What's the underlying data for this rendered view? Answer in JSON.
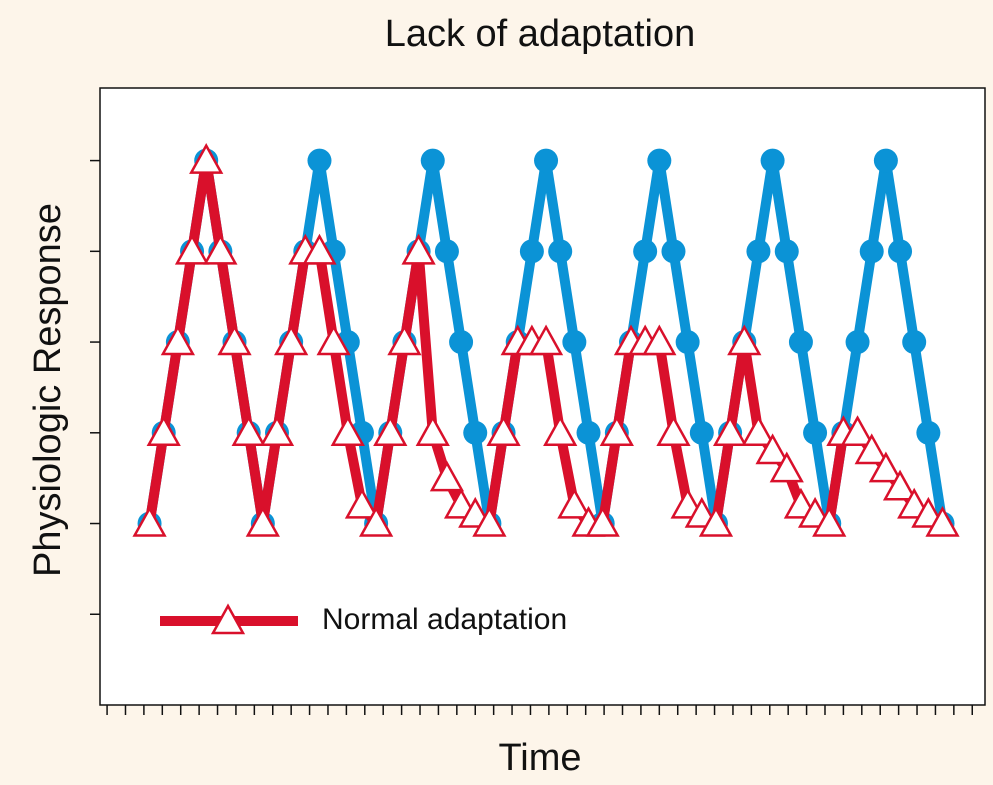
{
  "chart_data": {
    "type": "line",
    "title": "Lack of adaptation",
    "x_label": "Time",
    "y_label": "Physiologic Response",
    "x": [
      0,
      1,
      2,
      3,
      4,
      5,
      6,
      7,
      8,
      9,
      10,
      11,
      12,
      13,
      14,
      15,
      16,
      17,
      18,
      19,
      20,
      21,
      22,
      23,
      24,
      25,
      26,
      27,
      28,
      29,
      30,
      31,
      32,
      33,
      34,
      35,
      36,
      37,
      38,
      39,
      40,
      41,
      42,
      43,
      44,
      45,
      46,
      47,
      48,
      49,
      50,
      51,
      52,
      53,
      54,
      55,
      56
    ],
    "series": [
      {
        "color": "#0b93d6",
        "marker": "circle",
        "values": [
          2,
          3,
          4,
          5,
          6,
          5,
          4,
          3,
          2,
          3,
          4,
          5,
          6,
          5,
          4,
          3,
          2,
          3,
          4,
          5,
          6,
          5,
          4,
          3,
          2,
          3,
          4,
          5,
          6,
          5,
          4,
          3,
          2,
          3,
          4,
          5,
          6,
          5,
          4,
          3,
          2,
          3,
          4,
          5,
          6,
          5,
          4,
          3,
          2,
          3,
          4,
          5,
          6,
          5,
          4,
          3,
          2
        ]
      },
      {
        "name": "Normal adaptation",
        "color": "#d9102b",
        "marker": "triangle",
        "values": [
          2,
          3,
          4,
          5,
          6,
          5,
          4,
          3,
          2,
          3,
          4,
          5,
          5,
          4,
          3,
          2.2,
          2,
          3,
          4,
          5,
          3,
          2.5,
          2.2,
          2.1,
          2,
          3,
          4,
          4,
          4,
          3,
          2.2,
          2,
          2,
          3,
          4,
          4,
          4,
          3,
          2.2,
          2.1,
          2,
          3,
          4,
          3,
          2.8,
          2.6,
          2.2,
          2.1,
          2,
          3,
          3,
          2.8,
          2.6,
          2.4,
          2.2,
          2.1,
          2
        ]
      }
    ],
    "xlim": [
      -3.5,
      59
    ],
    "xticks": [
      -3,
      -1.7,
      -0.4,
      0.9,
      2.2,
      3.5,
      4.8,
      6.1,
      7.4,
      8.7,
      10,
      11.3,
      12.6,
      13.9,
      15.2,
      16.5,
      17.8,
      19.1,
      20.4,
      21.7,
      23,
      24.3,
      25.6,
      26.9,
      28.2,
      29.5,
      30.8,
      32.1,
      33.4,
      34.7,
      36,
      37.3,
      38.6,
      39.9,
      41.2,
      42.5,
      43.8,
      45.1,
      46.4,
      47.7,
      49,
      50.3,
      51.6,
      52.9,
      54.2,
      55.5,
      56.8,
      58.1
    ],
    "ylim": [
      0,
      6.8
    ],
    "yticks": [
      1,
      2,
      3,
      4,
      5,
      6
    ],
    "legend": "lower left"
  }
}
